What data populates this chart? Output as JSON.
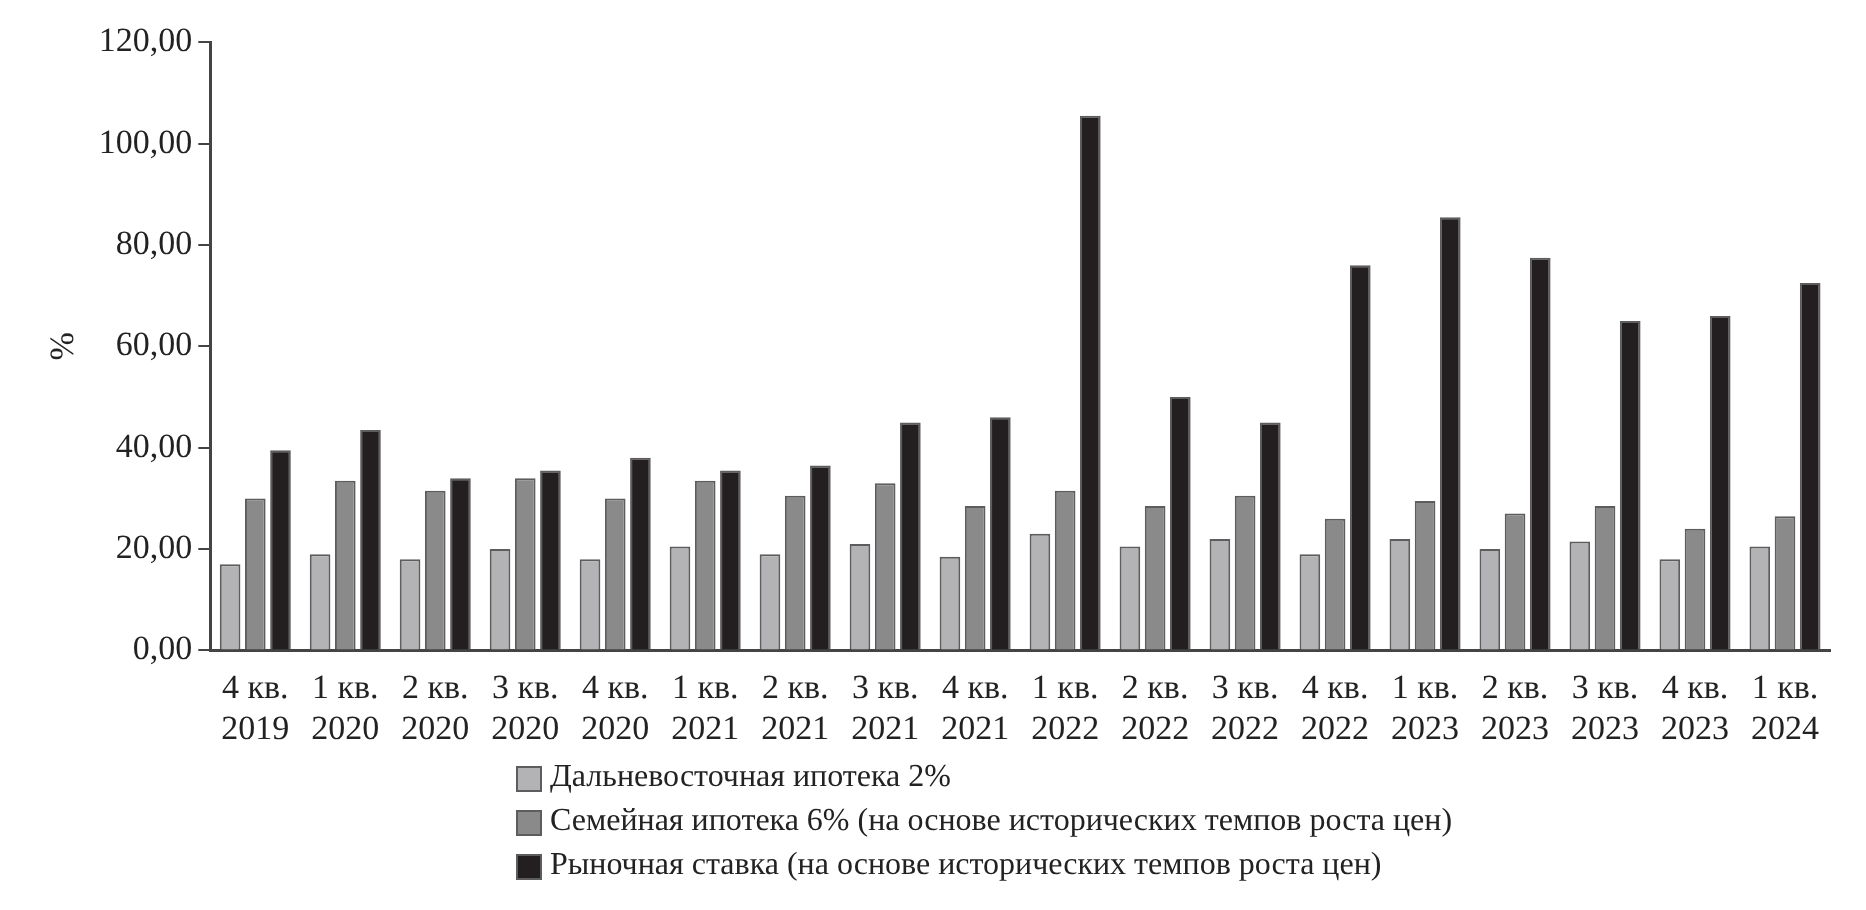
{
  "chart_data": {
    "type": "bar",
    "ylabel": "%",
    "categories": [
      "4 кв.\n2019",
      "1 кв.\n2020",
      "2 кв.\n2020",
      "3 кв.\n2020",
      "4 кв.\n2020",
      "1 кв.\n2021",
      "2 кв.\n2021",
      "3 кв.\n2021",
      "4 кв.\n2021",
      "1 кв.\n2022",
      "2 кв.\n2022",
      "3 кв.\n2022",
      "4 кв.\n2022",
      "1 кв.\n2023",
      "2 кв.\n2023",
      "3 кв.\n2023",
      "4 кв.\n2023",
      "1 кв.\n2024"
    ],
    "series": [
      {
        "name": "Дальневосточная ипотека 2%",
        "color": "#b3b3b5",
        "values": [
          17,
          19,
          18,
          20,
          18,
          20.5,
          19,
          21,
          18.5,
          23,
          20.5,
          22,
          19,
          22,
          20,
          21.5,
          18,
          20.5
        ]
      },
      {
        "name": "Семейная ипотека 6% (на основе исторических темпов роста цен)",
        "color": "#8a8a8a",
        "values": [
          30,
          33.5,
          31.5,
          34,
          30,
          33.5,
          30.5,
          33,
          28.5,
          31.5,
          28.5,
          30.5,
          26,
          29.5,
          27,
          28.5,
          24,
          26.5
        ]
      },
      {
        "name": "Рыночная ставка (на основе исторических темпов роста цен)",
        "color": "#231f20",
        "values": [
          39.5,
          43.5,
          34,
          35.5,
          38,
          35.5,
          36.5,
          45,
          46,
          105.5,
          50,
          45,
          76,
          85.5,
          77.5,
          65,
          66,
          72.5
        ]
      }
    ],
    "ylim": [
      0,
      120
    ],
    "yticks": [
      {
        "value": 0,
        "label": "0,00"
      },
      {
        "value": 20,
        "label": "20,00"
      },
      {
        "value": 40,
        "label": "40,00"
      },
      {
        "value": 60,
        "label": "60,00"
      },
      {
        "value": 80,
        "label": "80,00"
      },
      {
        "value": 100,
        "label": "100,00"
      },
      {
        "value": 120,
        "label": "120,00"
      }
    ],
    "grid": false,
    "legend": "bottom"
  }
}
